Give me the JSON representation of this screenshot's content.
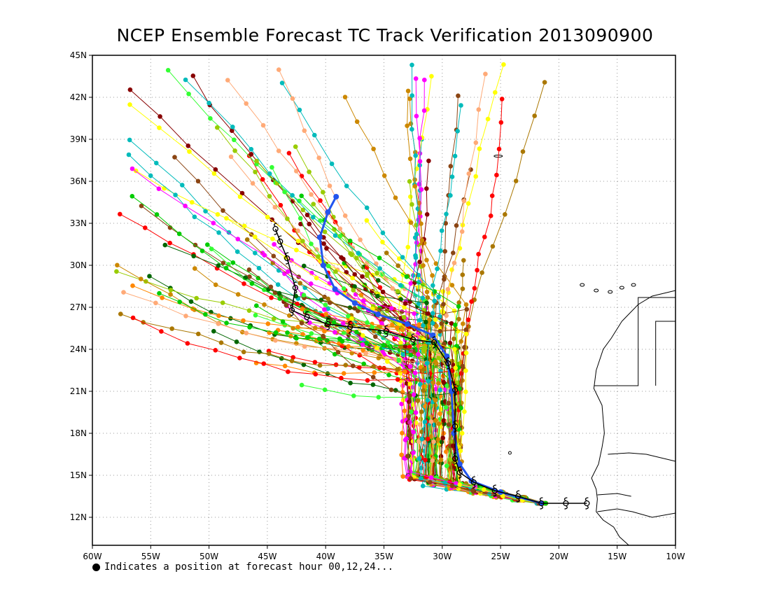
{
  "title": "NCEP Ensemble Forecast TC Track Verification 2013090900",
  "footnote": "Indicates a position at forecast hour 00,12,24...",
  "map": {
    "lon_range": [
      -60,
      -10
    ],
    "lat_range": [
      10,
      45
    ],
    "x_ticks": [
      "60W",
      "55W",
      "50W",
      "45W",
      "40W",
      "35W",
      "30W",
      "25W",
      "20W",
      "15W",
      "10W"
    ],
    "y_ticks": [
      "12N",
      "15N",
      "18N",
      "21N",
      "24N",
      "27N",
      "30N",
      "33N",
      "36N",
      "39N",
      "42N",
      "45N"
    ],
    "grid": "dotted",
    "observed_track": {
      "color": "#000000",
      "marker": "tropical-cyclone-symbol",
      "points": [
        [
          -17.6,
          13.0
        ],
        [
          -19.4,
          13.0
        ],
        [
          -21.5,
          13.0
        ],
        [
          -23.5,
          13.5
        ],
        [
          -25.5,
          13.9
        ],
        [
          -27.3,
          14.5
        ],
        [
          -28.5,
          15.2
        ],
        [
          -28.9,
          16.2
        ],
        [
          -28.9,
          18.5
        ],
        [
          -28.9,
          21.1
        ],
        [
          -29.5,
          23.0
        ],
        [
          -30.7,
          24.5
        ],
        [
          -32.5,
          24.7
        ],
        [
          -34.8,
          25.3
        ],
        [
          -37.9,
          25.6
        ],
        [
          -39.8,
          25.8
        ],
        [
          -41.6,
          26.3
        ],
        [
          -42.9,
          26.8
        ],
        [
          -42.6,
          28.4
        ],
        [
          -43.3,
          30.5
        ],
        [
          -43.9,
          31.7
        ],
        [
          -44.3,
          32.6
        ]
      ]
    },
    "ensemble_mean_track": {
      "color": "#2255ee",
      "points": [
        [
          -21.5,
          13.0
        ],
        [
          -25.0,
          13.8
        ],
        [
          -27.5,
          14.6
        ],
        [
          -28.5,
          15.8
        ],
        [
          -29.0,
          18.0
        ],
        [
          -29.2,
          21.0
        ],
        [
          -29.6,
          23.5
        ],
        [
          -30.8,
          25.0
        ],
        [
          -33.0,
          25.8
        ],
        [
          -35.5,
          26.5
        ],
        [
          -37.5,
          27.3
        ],
        [
          -39.2,
          28.3
        ],
        [
          -40.2,
          30.0
        ],
        [
          -40.5,
          32.0
        ],
        [
          -39.8,
          33.8
        ],
        [
          -39.1,
          34.9
        ]
      ]
    },
    "member_colors": [
      "#ff0000",
      "#00cc00",
      "#ff00ff",
      "#00bbbb",
      "#8b4513",
      "#ffff00",
      "#cc8800",
      "#006600",
      "#ff8800",
      "#99cc00",
      "#ffaa77",
      "#880000",
      "#aa7700",
      "#33ff33"
    ],
    "coastline_color": "#000000"
  }
}
